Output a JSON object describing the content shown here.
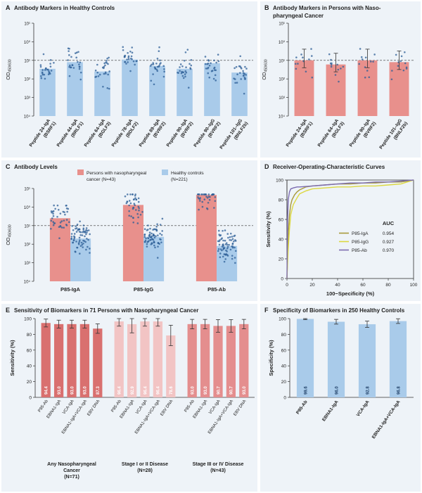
{
  "panels": [
    {
      "letter": "A",
      "title": "Antibody Markers in Healthy Controls",
      "type": "bar",
      "yaxis_label_main": "OD",
      "yaxis_label_sub": "450/630",
      "yscale": "log",
      "ylim": [
        0.0001,
        10
      ],
      "yticks": [
        "10⁴",
        "10³",
        "10²",
        "10¹",
        "10⁰",
        "10¹"
      ],
      "ytick_values": [
        0.0001,
        0.001,
        0.01,
        0.1,
        1,
        10
      ],
      "threshold": 0.1,
      "categories": [
        [
          "Peptide 24–IgA",
          "(BSRF1)"
        ],
        [
          "Peptide 44–IgA",
          "(BRLF1)"
        ],
        [
          "Peptide 64–IgA",
          "(BGLF3)"
        ],
        [
          "Peptide 78–IgA",
          "(BDLF2)"
        ],
        [
          "Peptide 89–IgA",
          "(BVRF2)"
        ],
        [
          "Peptide 90–IgA",
          "(BVRF2)"
        ],
        [
          "Peptide 90–IgG",
          "(BVRF2)"
        ],
        [
          "Peptide 101–IgG",
          "(BNLF2b)"
        ]
      ],
      "values": [
        0.035,
        0.08,
        0.025,
        0.11,
        0.05,
        0.035,
        0.07,
        0.022
      ],
      "color": "#a9cbea"
    },
    {
      "letter": "B",
      "title": [
        "Antibody Markers in Persons with Naso-",
        "pharyngeal Cancer"
      ],
      "type": "bar",
      "yaxis_label_main": "OD",
      "yaxis_label_sub": "450/630",
      "yscale": "log",
      "ylim": [
        0.0001,
        10
      ],
      "yticks": [
        "10⁴",
        "10³",
        "10²",
        "10¹",
        "10⁰",
        "10¹"
      ],
      "ytick_values": [
        0.0001,
        0.001,
        0.01,
        0.1,
        1,
        10
      ],
      "threshold": 0.1,
      "categories": [
        [
          "Peptide 24–IgA",
          "(BSRF1)"
        ],
        [
          "Peptide 64–IgA",
          "(BGLF3)"
        ],
        [
          "Peptide 90–IgA",
          "(BVRF2)"
        ],
        [
          "Peptide 101–IgG",
          "(BNLF2b)"
        ]
      ],
      "values": [
        0.1,
        0.06,
        0.1,
        0.08
      ],
      "color": "#e8908c"
    },
    {
      "letter": "C",
      "title": "Antibody Levels",
      "type": "bar",
      "yaxis_label_main": "OD",
      "yaxis_label_sub": "450/630",
      "yscale": "log",
      "ylim": [
        0.0001,
        10
      ],
      "yticks": [
        "10⁴",
        "10³",
        "10²",
        "10¹",
        "10⁰",
        "10¹"
      ],
      "ytick_values": [
        0.0001,
        0.001,
        0.01,
        0.1,
        1,
        10
      ],
      "threshold": 0.1,
      "categories": [
        "P85-IgA",
        "P85-IgG",
        "P85-Ab"
      ],
      "legend": [
        [
          "Persons with nasopharyngeal",
          "cancer (N=43)"
        ],
        [
          "Healthy controls",
          "(N=221)"
        ]
      ],
      "series": [
        {
          "values": [
            0.25,
            1.3,
            4.5
          ],
          "color": "#e8908c"
        },
        {
          "values": [
            0.02,
            0.025,
            0.008
          ],
          "color": "#a9cbea"
        }
      ]
    },
    {
      "letter": "D",
      "title": "Receiver-Operating-Characteristic Curves",
      "type": "line",
      "xlabel": "100−Specificity (%)",
      "ylabel": "Sensitivity (%)",
      "xlim": [
        0,
        100
      ],
      "ylim": [
        0,
        100
      ],
      "xticks": [
        0,
        20,
        40,
        60,
        80,
        100
      ],
      "yticks": [
        0,
        20,
        40,
        60,
        80,
        100
      ],
      "legend_header": "AUC",
      "series": [
        {
          "name": "P85-IgA",
          "auc": "0.954",
          "color": "#a89a3a",
          "x": [
            0,
            1,
            2,
            3,
            4,
            6,
            8,
            10,
            15,
            20,
            30,
            40,
            50,
            60,
            70,
            80,
            90,
            100
          ],
          "y": [
            0,
            45,
            65,
            75,
            80,
            85,
            88,
            90,
            93,
            94,
            95,
            96,
            96,
            97,
            97,
            98,
            98,
            100
          ]
        },
        {
          "name": "P85-IgG",
          "auc": "0.927",
          "color": "#dcd840",
          "x": [
            0,
            1,
            2,
            3,
            5,
            8,
            10,
            15,
            20,
            30,
            40,
            50,
            60,
            70,
            80,
            90,
            100
          ],
          "y": [
            0,
            30,
            50,
            65,
            75,
            82,
            86,
            89,
            91,
            92,
            93,
            93,
            94,
            94,
            95,
            96,
            100
          ]
        },
        {
          "name": "P85-Ab",
          "auc": "0.970",
          "color": "#7b6bb0",
          "x": [
            0,
            0.5,
            1,
            2,
            3,
            5,
            8,
            10,
            20,
            30,
            40,
            50,
            60,
            70,
            80,
            90,
            100
          ],
          "y": [
            0,
            60,
            80,
            88,
            91,
            92,
            93,
            93,
            94,
            95,
            96,
            97,
            97,
            98,
            98,
            99,
            100
          ]
        }
      ]
    },
    {
      "letter": "E",
      "title": "Sensitivity of Biomarkers in 71 Persons with Nasopharyngeal Cancer",
      "type": "bar",
      "ylabel": "Sensitivity (%)",
      "ylim": [
        0,
        100
      ],
      "yticks": [
        0,
        20,
        40,
        60,
        80,
        100
      ],
      "groups": [
        {
          "label": [
            "Any Nasopharyngeal",
            "Cancer",
            "(N=71)"
          ],
          "color": "#d9706f",
          "categories": [
            "P85-Ab",
            "EBNA1-IgA",
            "VCA-IgA",
            "EBNA1-IgA+VCA-IgA",
            "EBV DNA"
          ],
          "values": [
            94.4,
            93.0,
            93.0,
            93.0,
            87.3
          ],
          "err": [
            5,
            5,
            5,
            5,
            6
          ]
        },
        {
          "label": [
            "Stage I or II Disease",
            "(N=28)"
          ],
          "color": "#f2c4c4",
          "categories": [
            "P85-Ab",
            "EBNA1-IgA",
            "VCA-IgA",
            "EBNA1-IgA+VCA-IgA",
            "EBV DNA"
          ],
          "values": [
            96.4,
            92.9,
            96.4,
            96.4,
            78.6
          ],
          "err": [
            6,
            11,
            6,
            6,
            13
          ]
        },
        {
          "label": [
            "Stage III or IV Disease",
            "(N=43)"
          ],
          "color": "#e48e8e",
          "categories": [
            "P85-Ab",
            "EBNA1-IgA",
            "VCA-IgA",
            "EBNA1-IgA+VCA-IgA",
            "EBV DNA"
          ],
          "values": [
            93.0,
            93.0,
            90.7,
            90.7,
            93.0
          ],
          "err": [
            6,
            6,
            8,
            8,
            6
          ]
        }
      ],
      "value_labels": [
        [
          "94.4",
          "93.0",
          "93.0",
          "93.0",
          "87.3"
        ],
        [
          "96.4",
          "92.9",
          "96.4",
          "96.4",
          "78.6"
        ],
        [
          "93.0",
          "93.0",
          "90.7",
          "90.7",
          "93.0"
        ]
      ]
    },
    {
      "letter": "F",
      "title": "Specificity of Biomarkers in 250 Healthy Controls",
      "type": "bar",
      "ylabel": "Specificity (%)",
      "ylim": [
        0,
        100
      ],
      "yticks": [
        0,
        20,
        40,
        60,
        80,
        100
      ],
      "categories": [
        "P85-Ab",
        "EBNA1-IgA",
        "VCA-IgA",
        "EBNA1-IgA+VCA-IgA"
      ],
      "values": [
        99.6,
        96.0,
        92.8,
        96.8
      ],
      "value_labels": [
        "99.6",
        "96.0",
        "92.8",
        "96.8"
      ],
      "err": [
        1,
        3,
        4,
        3
      ],
      "color": "#a9cbea"
    }
  ]
}
